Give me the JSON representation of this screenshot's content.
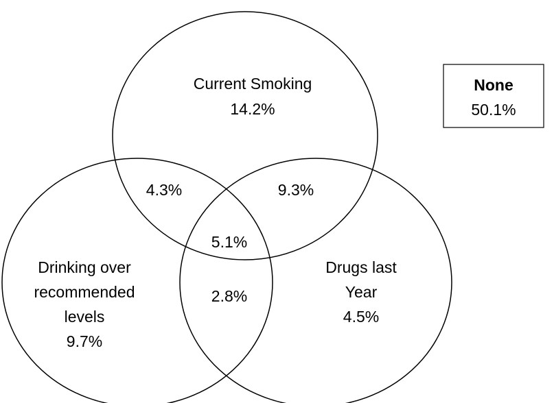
{
  "sets": {
    "smoking": {
      "name": "Current Smoking",
      "value": "14.2%"
    },
    "drinking": {
      "name_lines": [
        "Drinking over",
        "recommended",
        "levels"
      ],
      "value": "9.7%"
    },
    "drugs": {
      "name_lines": [
        "Drugs last",
        "Year"
      ],
      "value": "4.5%"
    }
  },
  "overlaps": {
    "smoking_drinking": "4.3%",
    "smoking_drugs": "9.3%",
    "drinking_drugs": "2.8%",
    "all_three": "5.1%"
  },
  "none": {
    "label": "None",
    "value": "50.1%"
  }
}
